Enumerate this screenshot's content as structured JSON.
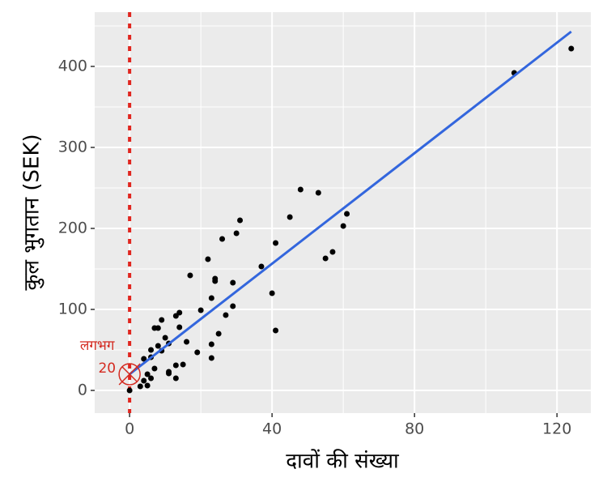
{
  "chart_data": {
    "type": "scatter",
    "x_label": "दावों की संख्या",
    "y_label": "कुल भुगतान (SEK)",
    "x": [
      0,
      108,
      124,
      48,
      53,
      61,
      60,
      45,
      31,
      30,
      26,
      22,
      17,
      37,
      41,
      57,
      55,
      40,
      41,
      24,
      24,
      29,
      23,
      27,
      29,
      20,
      25,
      23,
      23,
      19,
      16,
      14,
      13,
      14,
      11,
      10,
      9,
      7,
      8,
      8,
      9,
      6,
      4,
      6,
      7,
      5,
      6,
      4,
      3,
      5,
      13,
      11,
      11,
      13,
      15
    ],
    "y": [
      0,
      392,
      422,
      248,
      244,
      218,
      203,
      214,
      210,
      194,
      187,
      162,
      142,
      153,
      182,
      171,
      163,
      120,
      74,
      138,
      135,
      133,
      114,
      93,
      104,
      99,
      70,
      57,
      40,
      47,
      60,
      96,
      92,
      78,
      58,
      65,
      87,
      77,
      77,
      55,
      49,
      50,
      39,
      41,
      27,
      20,
      15,
      12,
      5,
      6,
      31,
      23,
      21,
      15,
      32
    ],
    "color": "#000000",
    "fit": {
      "x": [
        0,
        124
      ],
      "y": [
        20,
        443
      ],
      "color": "#3366dd"
    },
    "reference_line": {
      "x": 0,
      "color": "#e0261f"
    },
    "annotation": {
      "x": 0,
      "y": 20,
      "text": [
        "लगभग",
        "20"
      ],
      "color": "#d42a20"
    },
    "xlim": [
      -9.8,
      129.5
    ],
    "xticks": [
      0,
      40,
      80,
      120
    ],
    "xminor": [
      20,
      60,
      100
    ],
    "ylim": [
      -28,
      467
    ],
    "yticks": [
      0,
      100,
      200,
      300,
      400
    ],
    "yminor": [
      50,
      150,
      250,
      350,
      450
    ],
    "grid": true
  }
}
